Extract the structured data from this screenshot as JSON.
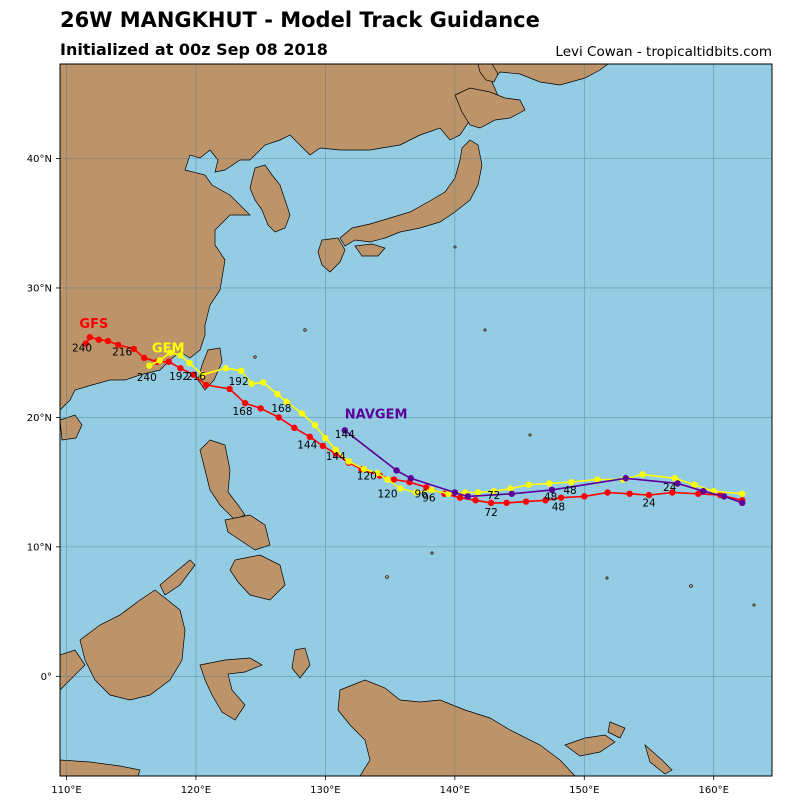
{
  "header": {
    "title": "26W MANGKHUT - Model Track Guidance",
    "subtitle": "Initialized at 00z Sep 08 2018",
    "credit": "Levi Cowan - tropicaltidbits.com"
  },
  "colors": {
    "ocean": "#93cce3",
    "land": "#bd9469",
    "gfs": "#ff0000",
    "gem": "#ffff00",
    "navgem": "#5c0099"
  },
  "chart_data": {
    "type": "map",
    "lon_range": [
      109.5,
      164.5
    ],
    "lat_range": [
      -7.7,
      47.3
    ],
    "lon_ticks": [
      110,
      120,
      130,
      140,
      150,
      160
    ],
    "lat_ticks": [
      0,
      10,
      20,
      30,
      40
    ],
    "lon_tick_labels": [
      "110°E",
      "120°E",
      "130°E",
      "140°E",
      "150°E",
      "160°E"
    ],
    "lat_tick_labels": [
      "0°",
      "10°N",
      "20°N",
      "30°N",
      "40°N"
    ],
    "grid": true,
    "tracks": [
      {
        "name": "GFS",
        "color": "#ff0000",
        "points": [
          [
            162.2,
            13.6
          ],
          [
            160.5,
            14.0
          ],
          [
            158.8,
            14.1
          ],
          [
            156.8,
            14.2
          ],
          [
            155.0,
            14.0
          ],
          [
            153.5,
            14.1
          ],
          [
            151.8,
            14.2
          ],
          [
            150.0,
            13.9
          ],
          [
            148.2,
            13.8
          ],
          [
            147.0,
            13.6
          ],
          [
            145.5,
            13.5
          ],
          [
            144.0,
            13.4
          ],
          [
            142.8,
            13.4
          ],
          [
            141.6,
            13.6
          ],
          [
            140.4,
            13.8
          ],
          [
            139.2,
            14.1
          ],
          [
            137.8,
            14.6
          ],
          [
            136.5,
            15.0
          ],
          [
            135.3,
            15.2
          ],
          [
            134.2,
            15.5
          ],
          [
            132.8,
            16.0
          ],
          [
            131.8,
            16.5
          ],
          [
            130.8,
            17.2
          ],
          [
            129.8,
            17.8
          ],
          [
            128.8,
            18.5
          ],
          [
            127.6,
            19.2
          ],
          [
            126.4,
            20.0
          ],
          [
            125.0,
            20.7
          ],
          [
            123.8,
            21.1
          ],
          [
            122.6,
            22.2
          ],
          [
            120.8,
            22.5
          ],
          [
            119.8,
            23.3
          ],
          [
            118.8,
            23.8
          ],
          [
            117.9,
            24.3
          ],
          [
            117.0,
            24.3
          ],
          [
            116.0,
            24.6
          ],
          [
            115.2,
            25.3
          ],
          [
            114.0,
            25.6
          ],
          [
            113.2,
            25.9
          ],
          [
            112.5,
            26.0
          ],
          [
            111.8,
            26.2
          ],
          [
            111.5,
            25.7
          ]
        ],
        "label": {
          "text": "GFS",
          "lon": 111.0,
          "lat": 26.9
        }
      },
      {
        "name": "GEM",
        "color": "#ffff00",
        "points": [
          [
            162.2,
            14.1
          ],
          [
            160.0,
            14.3
          ],
          [
            158.5,
            14.8
          ],
          [
            157.0,
            15.3
          ],
          [
            154.5,
            15.6
          ],
          [
            153.0,
            15.2
          ],
          [
            151.0,
            15.2
          ],
          [
            149.0,
            15.0
          ],
          [
            147.3,
            14.9
          ],
          [
            145.7,
            14.8
          ],
          [
            144.3,
            14.5
          ],
          [
            143.0,
            14.3
          ],
          [
            141.8,
            14.2
          ],
          [
            140.8,
            14.2
          ],
          [
            139.5,
            14.1
          ],
          [
            138.2,
            14.4
          ],
          [
            137.0,
            14.2
          ],
          [
            135.8,
            14.5
          ],
          [
            134.8,
            15.2
          ],
          [
            134.0,
            15.7
          ],
          [
            133.0,
            16.0
          ],
          [
            131.8,
            16.6
          ],
          [
            130.8,
            17.5
          ],
          [
            130.0,
            18.4
          ],
          [
            129.2,
            19.4
          ],
          [
            128.2,
            20.3
          ],
          [
            127.0,
            21.2
          ],
          [
            126.3,
            21.8
          ],
          [
            125.2,
            22.7
          ],
          [
            124.3,
            22.6
          ],
          [
            123.5,
            23.6
          ],
          [
            122.3,
            23.8
          ],
          [
            120.5,
            23.3
          ],
          [
            119.5,
            24.2
          ],
          [
            118.8,
            24.8
          ],
          [
            118.0,
            25.0
          ],
          [
            117.2,
            24.4
          ],
          [
            116.4,
            24.0
          ]
        ],
        "label": {
          "text": "GEM",
          "lon": 116.6,
          "lat": 25.0
        }
      },
      {
        "name": "NAVGEM",
        "color": "#5c0099",
        "points": [
          [
            162.2,
            13.4
          ],
          [
            160.8,
            13.9
          ],
          [
            159.2,
            14.3
          ],
          [
            157.2,
            14.9
          ],
          [
            153.2,
            15.3
          ],
          [
            147.5,
            14.4
          ],
          [
            144.4,
            14.1
          ],
          [
            141.0,
            13.9
          ],
          [
            140.0,
            14.2
          ],
          [
            136.6,
            15.3
          ],
          [
            135.5,
            15.9
          ],
          [
            131.5,
            19.0
          ]
        ],
        "label": {
          "text": "NAVGEM",
          "lon": 131.5,
          "lat": 19.9
        }
      }
    ],
    "hour_labels": [
      {
        "text": "240",
        "lon": 111.2,
        "lat": 25.1
      },
      {
        "text": "216",
        "lon": 114.3,
        "lat": 24.8
      },
      {
        "text": "240",
        "lon": 116.2,
        "lat": 22.8
      },
      {
        "text": "192",
        "lon": 118.7,
        "lat": 22.9
      },
      {
        "text": "216",
        "lon": 120.0,
        "lat": 22.9
      },
      {
        "text": "192",
        "lon": 123.3,
        "lat": 22.5
      },
      {
        "text": "168",
        "lon": 123.6,
        "lat": 20.2
      },
      {
        "text": "168",
        "lon": 126.6,
        "lat": 20.4
      },
      {
        "text": "144",
        "lon": 131.5,
        "lat": 18.4
      },
      {
        "text": "144",
        "lon": 128.6,
        "lat": 17.6
      },
      {
        "text": "144",
        "lon": 130.8,
        "lat": 16.7
      },
      {
        "text": "120",
        "lon": 133.2,
        "lat": 15.2
      },
      {
        "text": "120",
        "lon": 134.8,
        "lat": 13.8
      },
      {
        "text": "96",
        "lon": 137.4,
        "lat": 13.8
      },
      {
        "text": "96",
        "lon": 138.0,
        "lat": 13.5
      },
      {
        "text": "72",
        "lon": 143.0,
        "lat": 13.7
      },
      {
        "text": "72",
        "lon": 142.8,
        "lat": 12.4
      },
      {
        "text": "48",
        "lon": 147.4,
        "lat": 13.6
      },
      {
        "text": "48",
        "lon": 148.9,
        "lat": 14.1
      },
      {
        "text": "48",
        "lon": 148.0,
        "lat": 12.8
      },
      {
        "text": "24",
        "lon": 155.0,
        "lat": 13.1
      },
      {
        "text": "24",
        "lon": 156.6,
        "lat": 14.3
      }
    ]
  }
}
